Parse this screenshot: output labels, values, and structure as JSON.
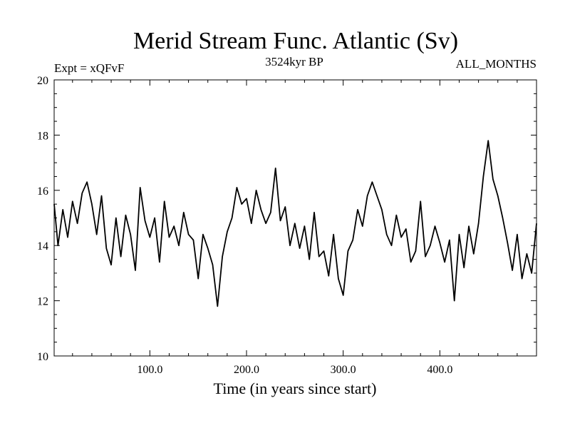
{
  "chart_data": {
    "type": "line",
    "title": "Merid Stream Func. Atlantic (Sv)",
    "subtitle_left": "Expt = xQFvF",
    "subtitle_center": "3524kyr BP",
    "subtitle_right": "ALL_MONTHS",
    "xlabel": "Time (in years since start)",
    "ylabel": "",
    "xlim": [
      1,
      500
    ],
    "ylim": [
      10,
      20
    ],
    "x_ticks": [
      100,
      200,
      300,
      400
    ],
    "x_tick_labels": [
      "100.0",
      "200.0",
      "300.0",
      "400.0"
    ],
    "y_ticks": [
      10,
      12,
      14,
      16,
      18,
      20
    ],
    "y_tick_labels": [
      "10",
      "12",
      "14",
      "16",
      "18",
      "20"
    ],
    "grid": false,
    "series": [
      {
        "name": "Merid Stream Func. Atlantic",
        "color": "#000000",
        "x": [
          1,
          5,
          10,
          15,
          20,
          25,
          30,
          35,
          40,
          45,
          50,
          55,
          60,
          65,
          70,
          75,
          80,
          85,
          90,
          95,
          100,
          105,
          110,
          115,
          120,
          125,
          130,
          135,
          140,
          145,
          150,
          155,
          160,
          165,
          170,
          175,
          180,
          185,
          190,
          195,
          200,
          205,
          210,
          215,
          220,
          225,
          230,
          235,
          240,
          245,
          250,
          255,
          260,
          265,
          270,
          275,
          280,
          285,
          290,
          295,
          300,
          305,
          310,
          315,
          320,
          325,
          330,
          335,
          340,
          345,
          350,
          355,
          360,
          365,
          370,
          375,
          380,
          385,
          390,
          395,
          400,
          405,
          410,
          415,
          420,
          425,
          430,
          435,
          440,
          445,
          450,
          455,
          460,
          465,
          470,
          475,
          480,
          485,
          490,
          495,
          500
        ],
        "values": [
          15.5,
          14.0,
          15.3,
          14.3,
          15.6,
          14.8,
          15.9,
          16.3,
          15.5,
          14.4,
          15.8,
          13.9,
          13.3,
          15.0,
          13.6,
          15.1,
          14.4,
          13.1,
          16.1,
          14.9,
          14.3,
          15.0,
          13.4,
          15.6,
          14.3,
          14.7,
          14.0,
          15.2,
          14.4,
          14.2,
          12.8,
          14.4,
          13.9,
          13.3,
          11.8,
          13.6,
          14.5,
          15.0,
          16.1,
          15.5,
          15.7,
          14.8,
          16.0,
          15.3,
          14.8,
          15.2,
          16.8,
          14.9,
          15.4,
          14.0,
          14.8,
          13.9,
          14.7,
          13.5,
          15.2,
          13.6,
          13.8,
          12.9,
          14.4,
          12.8,
          12.2,
          13.8,
          14.2,
          15.3,
          14.7,
          15.8,
          16.3,
          15.8,
          15.3,
          14.4,
          14.0,
          15.1,
          14.3,
          14.6,
          13.4,
          13.8,
          15.6,
          13.6,
          14.0,
          14.7,
          14.1,
          13.4,
          14.2,
          12.0,
          14.4,
          13.2,
          14.7,
          13.7,
          14.8,
          16.5,
          17.8,
          16.4,
          15.8,
          15.0,
          14.1,
          13.1,
          14.4,
          12.8,
          13.7,
          13.0,
          14.8
        ]
      }
    ]
  }
}
